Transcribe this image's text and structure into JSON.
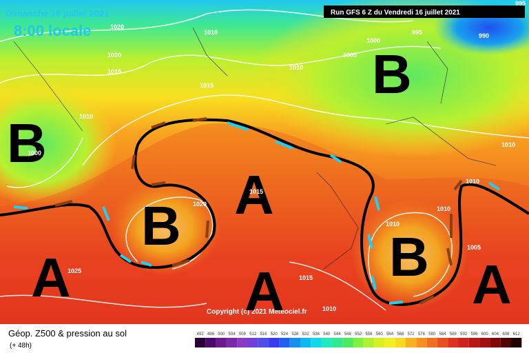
{
  "header": {
    "date": "Dimanche 18 juillet 2021",
    "time": "8:00 locale",
    "run": "Run GFS 6 Z du Vendredi 16 juillet 2021"
  },
  "map": {
    "centers": [
      "B",
      "B",
      "B",
      "A",
      "A",
      "A",
      "A",
      "B"
    ],
    "isobar_labels": [
      "1020",
      "1020",
      "1015",
      "1010",
      "1010",
      "1015",
      "1010",
      "1005",
      "1000",
      "995",
      "990",
      "995",
      "1000",
      "1025",
      "1015",
      "1010",
      "1010",
      "1010",
      "1010",
      "1005",
      "1010",
      "1020",
      "1015"
    ],
    "copyright": "Copyright (c) 2021 Meteociel.fr"
  },
  "footer": {
    "title": "Géop. Z500 & pression au sol",
    "lead": "(+ 48h)"
  },
  "scale": {
    "values": [
      492,
      496,
      500,
      504,
      508,
      512,
      516,
      520,
      524,
      528,
      532,
      536,
      540,
      544,
      548,
      552,
      556,
      560,
      564,
      568,
      572,
      576,
      580,
      584,
      588,
      592,
      596,
      600,
      604,
      608,
      612
    ],
    "colors": [
      "#2a0038",
      "#4b0a6b",
      "#6a1a8c",
      "#7a2aa8",
      "#8c3ac4",
      "#7040d8",
      "#5050e8",
      "#3a3af0",
      "#2060f0",
      "#1890f0",
      "#10b8f0",
      "#10d8e8",
      "#20e8c0",
      "#30e890",
      "#50e860",
      "#80f040",
      "#b0f030",
      "#d8f020",
      "#f0f020",
      "#f8d820",
      "#f8b020",
      "#f89020",
      "#f07020",
      "#e85020",
      "#e03020",
      "#d02020",
      "#b81818",
      "#a01010",
      "#800808",
      "#500404",
      "#200000"
    ]
  }
}
